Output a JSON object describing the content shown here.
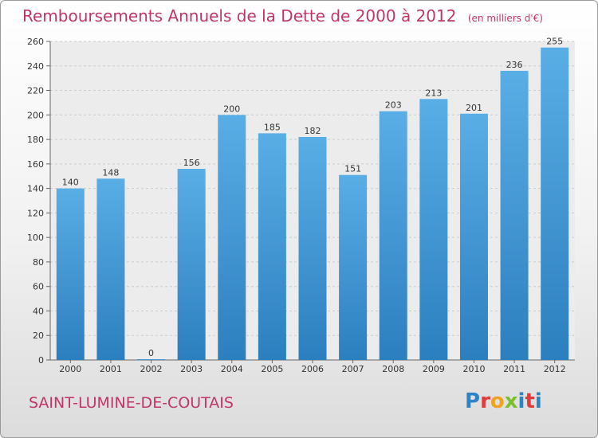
{
  "header": {
    "title": "Remboursements Annuels de la Dette de 2000 à 2012",
    "unit": "(en milliers d'€)"
  },
  "footer": {
    "city": "SAINT-LUMINE-DE-COUTAIS",
    "logo_letters": [
      "P",
      "r",
      "o",
      "x",
      "i",
      "t",
      "i"
    ],
    "logo_colors": [
      "#2c84c4",
      "#e23b3b",
      "#f0a21e",
      "#7bbf2a",
      "#2c84c4",
      "#e23b3b",
      "#2c84c4"
    ]
  },
  "colors": {
    "bar_top": "#5aaee6",
    "bar_bottom": "#2c7fbe",
    "grid": "#cccccc",
    "axis_text": "#333333"
  },
  "chart_data": {
    "type": "bar",
    "categories": [
      "2000",
      "2001",
      "2002",
      "2003",
      "2004",
      "2005",
      "2006",
      "2007",
      "2008",
      "2009",
      "2010",
      "2011",
      "2012"
    ],
    "values": [
      140,
      148,
      0,
      156,
      200,
      185,
      182,
      151,
      203,
      213,
      201,
      236,
      255
    ],
    "title": "Remboursements Annuels de la Dette de 2000 à 2012",
    "ylim": [
      0,
      260
    ],
    "yticks": [
      0,
      20,
      40,
      60,
      80,
      100,
      120,
      140,
      160,
      180,
      200,
      220,
      240,
      260
    ],
    "grid": true,
    "legend": "none"
  }
}
